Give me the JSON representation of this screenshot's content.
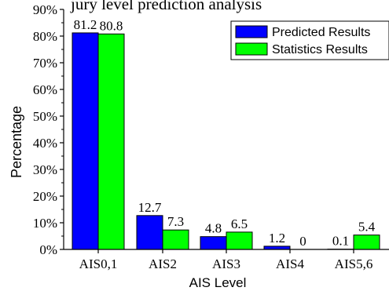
{
  "chart_data": {
    "type": "bar",
    "title": "",
    "xlabel": "AIS Level",
    "ylabel": "Percentage",
    "categories": [
      "AIS0,1",
      "AIS2",
      "AIS3",
      "AIS4",
      "AIS5,6"
    ],
    "series": [
      {
        "name": "Predicted Results",
        "color": "#0000ff",
        "values": [
          81.2,
          12.7,
          4.8,
          1.2,
          0.1
        ],
        "labels": [
          "81.2",
          "12.7",
          "4.8",
          "1.2",
          "0.1"
        ]
      },
      {
        "name": "Statistics Results",
        "color": "#00ff00",
        "values": [
          80.8,
          7.3,
          6.5,
          0,
          5.4
        ],
        "labels": [
          "80.8",
          "7.3",
          "6.5",
          "0",
          "5.4"
        ]
      }
    ],
    "ylim": [
      0,
      90
    ],
    "yticks": [
      0,
      10,
      20,
      30,
      40,
      50,
      60,
      70,
      80,
      90
    ],
    "ytick_labels": [
      "0%",
      "10%",
      "20%",
      "30%",
      "40%",
      "50%",
      "60%",
      "70%",
      "80%",
      "90%"
    ],
    "grid": false,
    "legend_position": "top-right",
    "top_text": "jury level prediction analysis"
  }
}
